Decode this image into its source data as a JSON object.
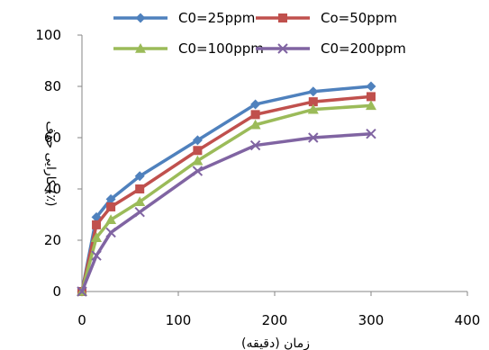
{
  "chart_data": {
    "type": "line",
    "xlabel": "زمان (دقیقه)",
    "ylabel": "کارایی حذف (٪)",
    "xlim": [
      0,
      400
    ],
    "ylim": [
      0,
      100
    ],
    "xticks": [
      0,
      100,
      200,
      300,
      400
    ],
    "yticks": [
      0,
      20,
      40,
      60,
      80,
      100
    ],
    "grid": false,
    "legend_position": "top",
    "x": [
      0,
      15,
      30,
      60,
      120,
      180,
      240,
      300
    ],
    "series": [
      {
        "name": "C0=25ppm",
        "color": "#4F81BD",
        "marker": "diamond",
        "values": [
          0,
          29,
          36,
          45,
          59,
          73,
          78,
          80
        ]
      },
      {
        "name": "Co=50ppm",
        "color": "#C0504D",
        "marker": "square",
        "values": [
          0,
          26,
          33,
          40,
          55,
          69,
          74,
          76
        ]
      },
      {
        "name": "C0=100ppm",
        "color": "#9BBB59",
        "marker": "triangle",
        "values": [
          0,
          21,
          28,
          35,
          51,
          65,
          71,
          72.5
        ]
      },
      {
        "name": "C0=200ppm",
        "color": "#8064A2",
        "marker": "x",
        "values": [
          0,
          14,
          23,
          31,
          47,
          57,
          60,
          61.5
        ]
      }
    ]
  }
}
